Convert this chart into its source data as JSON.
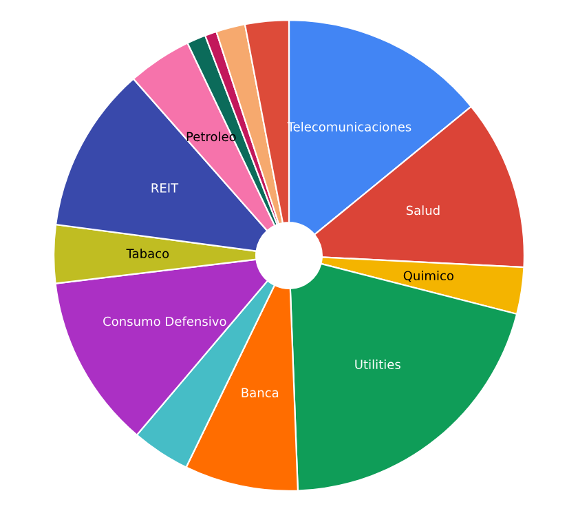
{
  "chart_data": {
    "type": "donut",
    "categories": [
      "Telecomunicaciones",
      "Salud",
      "Quimico",
      "Utilities",
      "Banca",
      null,
      "Consumo Defensivo",
      "Tabaco",
      "REIT",
      "Petroleo",
      null,
      null,
      null,
      null
    ],
    "values": [
      14.1,
      11.7,
      3.2,
      20.4,
      7.8,
      4.0,
      11.9,
      4.0,
      11.4,
      4.4,
      1.3,
      0.8,
      2.0,
      3.0
    ],
    "colors": [
      "#4285f4",
      "#db4437",
      "#f4b400",
      "#0f9d58",
      "#ff6d00",
      "#46bdc6",
      "#ab30c4",
      "#c0bd22",
      "#3949ab",
      "#f673ab",
      "#0b6b5a",
      "#c2185b",
      "#f6a96e",
      "#dd4b39"
    ],
    "legend": false
  }
}
